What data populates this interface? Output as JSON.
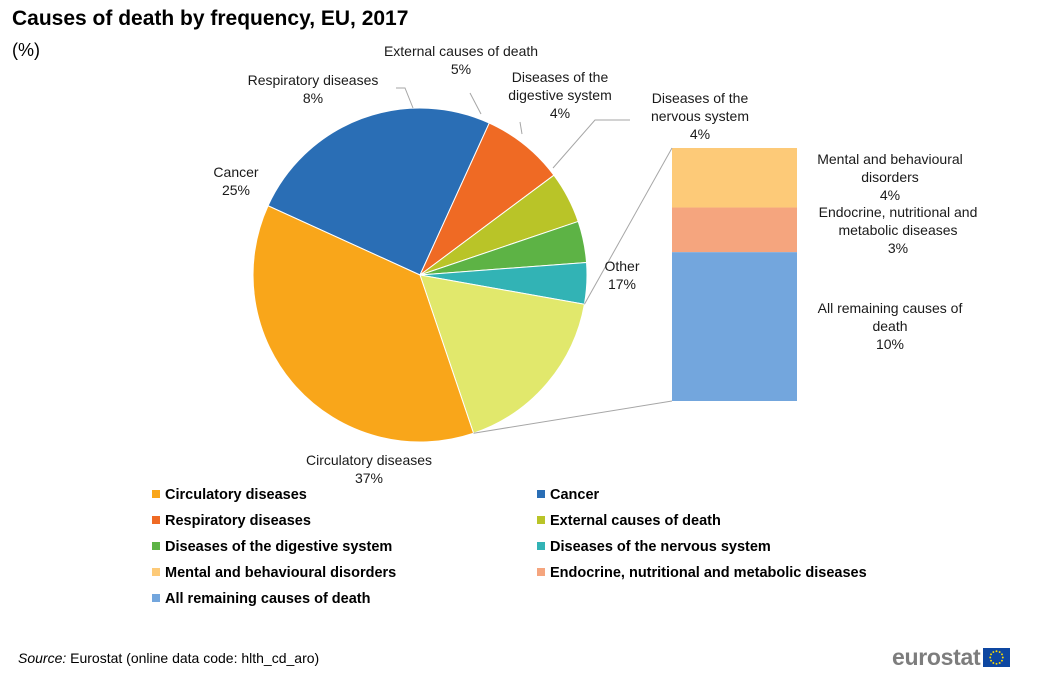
{
  "chart_data": {
    "type": "pie",
    "title": "Causes of death by frequency, EU, 2017",
    "subtitle": "(%)",
    "slices": [
      {
        "label": "Circulatory diseases",
        "value": 37,
        "value_label": "37%",
        "color": "#F9A61A"
      },
      {
        "label": "Cancer",
        "value": 25,
        "value_label": "25%",
        "color": "#2A6EB5"
      },
      {
        "label": "Respiratory diseases",
        "value": 8,
        "value_label": "8%",
        "color": "#EF6A24"
      },
      {
        "label": "External causes of death",
        "value": 5,
        "value_label": "5%",
        "color": "#B9C428"
      },
      {
        "label": "Diseases of the digestive system",
        "value": 4,
        "value_label": "4%",
        "color": "#5DB345"
      },
      {
        "label": "Diseases of the nervous system",
        "value": 4,
        "value_label": "4%",
        "color": "#32B3B5"
      },
      {
        "label": "Other",
        "value": 17,
        "value_label": "17%",
        "color": "#E1E86C"
      }
    ],
    "breakdown_of": "Other",
    "breakdown": [
      {
        "label": "Mental and behavioural disorders",
        "value": 4,
        "value_label": "4%",
        "color": "#FDCA78"
      },
      {
        "label": "Endocrine, nutritional and metabolic diseases",
        "value": 3,
        "value_label": "3%",
        "color": "#F5A57E"
      },
      {
        "label": "All remaining causes of death",
        "value": 10,
        "value_label": "10%",
        "color": "#73A6DD"
      }
    ],
    "legend": [
      {
        "label": "Circulatory diseases",
        "color": "#F9A61A"
      },
      {
        "label": "Cancer",
        "color": "#2A6EB5"
      },
      {
        "label": "Respiratory diseases",
        "color": "#EF6A24"
      },
      {
        "label": "External causes of death",
        "color": "#B9C428"
      },
      {
        "label": "Diseases of the digestive system",
        "color": "#5DB345"
      },
      {
        "label": "Diseases of the nervous system",
        "color": "#32B3B5"
      },
      {
        "label": "Mental and behavioural disorders",
        "color": "#FDCA78"
      },
      {
        "label": "Endocrine, nutritional and metabolic diseases",
        "color": "#F5A57E"
      },
      {
        "label": "All remaining causes of death",
        "color": "#73A6DD"
      }
    ],
    "legend_placement": "bottom",
    "slice_label_text": {
      "Circulatory diseases": [
        "Circulatory diseases",
        "37%"
      ],
      "Cancer": [
        "Cancer",
        "25%"
      ],
      "Respiratory diseases": [
        "Respiratory diseases",
        "8%"
      ],
      "External causes of death": [
        "External causes of death",
        "5%"
      ],
      "Diseases of the digestive system": [
        "Diseases of the",
        "digestive system",
        "4%"
      ],
      "Diseases of the nervous system": [
        "Diseases of the",
        "nervous system",
        "4%"
      ],
      "Other": [
        "Other",
        "17%"
      ],
      "Mental and behavioural disorders": [
        "Mental and behavioural",
        "disorders",
        "4%"
      ],
      "Endocrine, nutritional and metabolic diseases": [
        "Endocrine, nutritional and",
        "metabolic diseases",
        "3%"
      ],
      "All remaining causes of death": [
        "All remaining causes of",
        "death",
        "10%"
      ]
    }
  },
  "source": {
    "label": "Source:",
    "text": " Eurostat (online data code: hlth_cd_aro)"
  },
  "logo": {
    "text": "eurostat"
  }
}
